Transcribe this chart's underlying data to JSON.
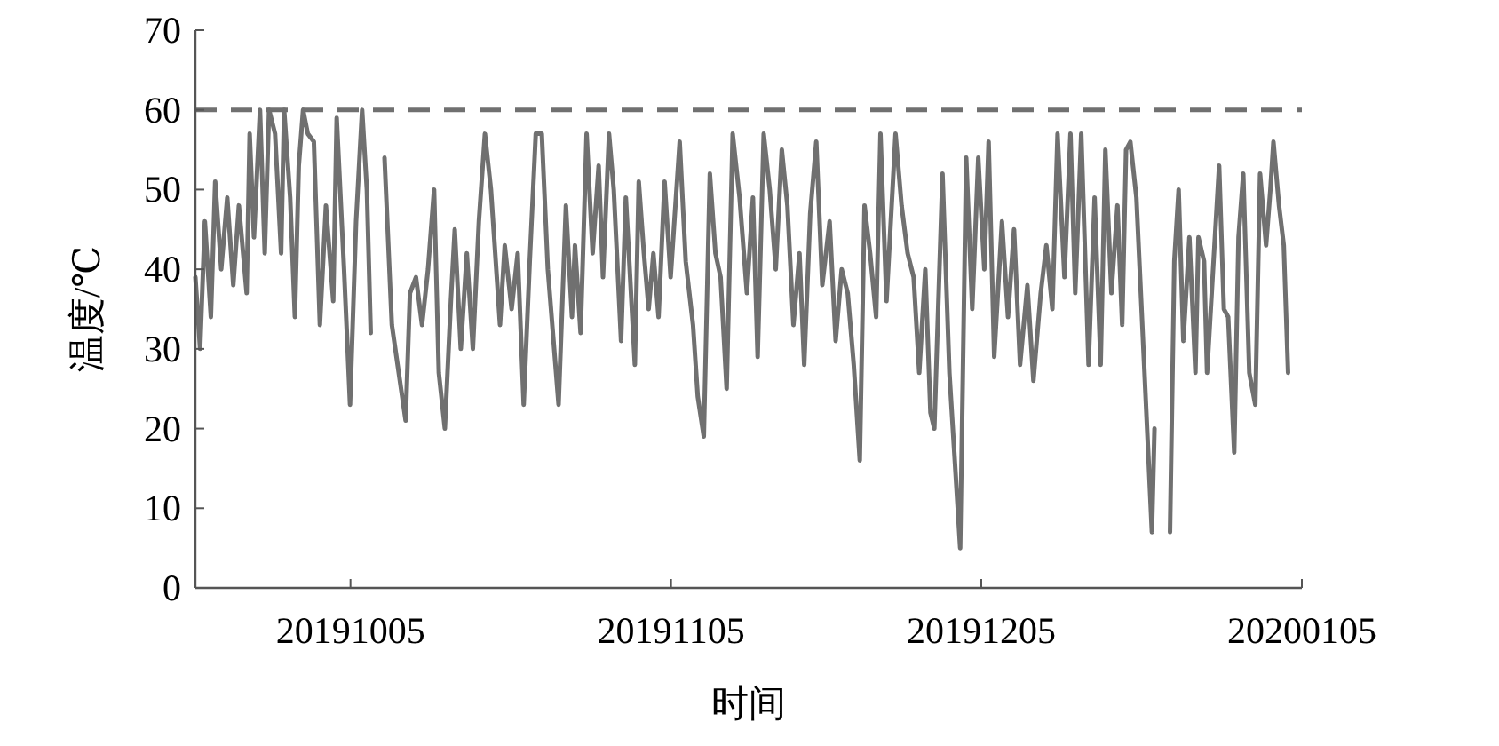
{
  "chart_data": {
    "type": "line",
    "xlabel": "时间",
    "ylabel": "温度/℃",
    "color": "#707070",
    "xlim": [
      "2019-09-20",
      "2020-01-05"
    ],
    "xticks": [
      {
        "value": "2019-10-05",
        "label": "20191005"
      },
      {
        "value": "2019-11-05",
        "label": "20191105"
      },
      {
        "value": "2019-12-05",
        "label": "20191205"
      },
      {
        "value": "2020-01-05",
        "label": "20200105"
      }
    ],
    "ylim": [
      0,
      70
    ],
    "yticks": [
      0,
      10,
      20,
      30,
      40,
      50,
      60,
      70
    ],
    "ref_lines": [
      {
        "axis": "y",
        "value": 60,
        "color": "#707070",
        "line_style": "dashed"
      }
    ],
    "x": [
      "2019-09-20T00:00",
      "2019-09-20T11:00",
      "2019-09-20T22:00",
      "2019-09-21T12:00",
      "2019-09-21T22:00",
      "2019-09-22T12:00",
      "2019-09-23T02:00",
      "2019-09-23T16:00",
      "2019-09-24T05:00",
      "2019-09-24T23:00",
      "2019-09-25T06:00",
      "2019-09-25T16:00",
      "2019-09-26T06:00",
      "2019-09-26T17:00",
      "2019-09-27T03:00",
      "2019-09-27T17:00",
      "2019-09-28T07:00",
      "2019-09-28T14:00",
      "2019-09-29T04:00",
      "2019-09-29T15:00",
      "2019-09-30T00:00",
      "2019-09-30T10:00",
      "2019-09-30T21:00",
      "2019-10-01T11:00",
      "2019-10-02T01:00",
      "2019-10-02T15:00",
      "2019-10-03T08:00",
      "2019-10-03T16:00",
      "2019-10-04T09:00",
      "2019-10-04T23:00",
      "2019-10-05T13:00",
      "2019-10-06T03:00",
      "2019-10-06T14:00",
      "2019-10-06T23:00",
      "2019-10-07T06:00",
      "2019-10-08T07:00",
      "2019-10-09T00:00",
      "2019-10-10T08:00",
      "2019-10-10T18:00",
      "2019-10-11T08:00",
      "2019-10-11T22:00",
      "2019-10-12T12:00",
      "2019-10-13T02:00",
      "2019-10-13T13:00",
      "2019-10-14T03:00",
      "2019-10-14T17:00",
      "2019-10-15T02:00",
      "2019-10-15T16:00",
      "2019-10-16T06:00",
      "2019-10-16T20:00",
      "2019-10-17T10:00",
      "2019-10-18T00:00",
      "2019-10-18T14:00",
      "2019-10-19T11:00",
      "2019-10-19T22:00",
      "2019-10-20T14:00",
      "2019-10-21T04:00",
      "2019-10-21T18:00",
      "2019-10-22T08:00",
      "2019-10-22T22:00",
      "2019-10-23T12:00",
      "2019-10-24T02:00",
      "2019-10-25T03:00",
      "2019-10-25T20:00",
      "2019-10-26T10:00",
      "2019-10-26T17:00",
      "2019-10-27T06:00",
      "2019-10-27T20:00",
      "2019-10-28T10:00",
      "2019-10-29T00:00",
      "2019-10-29T10:00",
      "2019-10-30T00:00",
      "2019-10-30T11:00",
      "2019-10-31T04:00",
      "2019-10-31T15:00",
      "2019-11-01T12:00",
      "2019-11-01T21:00",
      "2019-11-02T09:00",
      "2019-11-02T20:00",
      "2019-11-03T07:00",
      "2019-11-03T19:00",
      "2019-11-04T09:00",
      "2019-11-04T23:00",
      "2019-11-05T20:00",
      "2019-11-06T10:00",
      "2019-11-07T03:00",
      "2019-11-07T14:00",
      "2019-11-08T04:00",
      "2019-11-08T18:00",
      "2019-11-09T07:00",
      "2019-11-09T19:00",
      "2019-11-10T09:00",
      "2019-11-10T23:00",
      "2019-11-11T15:00",
      "2019-11-12T08:00",
      "2019-11-12T22:00",
      "2019-11-13T09:00",
      "2019-11-13T23:00",
      "2019-11-14T13:00",
      "2019-11-15T03:00",
      "2019-11-15T17:00",
      "2019-11-16T06:00",
      "2019-11-16T20:00",
      "2019-11-17T10:00",
      "2019-11-17T21:00",
      "2019-11-18T11:00",
      "2019-11-19T01:00",
      "2019-11-19T15:00",
      "2019-11-20T08:00",
      "2019-11-20T22:00",
      "2019-11-21T12:00",
      "2019-11-22T02:00",
      "2019-11-22T16:00",
      "2019-11-23T06:00",
      "2019-11-23T17:00",
      "2019-11-24T06:00",
      "2019-11-24T20:00",
      "2019-11-25T06:00",
      "2019-11-25T20:00",
      "2019-11-26T17:00",
      "2019-11-27T07:00",
      "2019-11-27T21:00",
      "2019-11-28T11:00",
      "2019-11-29T00:00",
      "2019-11-29T14:00",
      "2019-11-30T02:00",
      "2019-11-30T11:00",
      "2019-12-01T06:00",
      "2019-12-01T22:00",
      "2019-12-02T23:00",
      "2019-12-03T13:00",
      "2019-12-04T03:00",
      "2019-12-04T17:00",
      "2019-12-05T07:00",
      "2019-12-05T17:00",
      "2019-12-06T06:00",
      "2019-12-07T00:00",
      "2019-12-07T14:00",
      "2019-12-08T04:00",
      "2019-12-08T18:00",
      "2019-12-09T11:00",
      "2019-12-10T01:00",
      "2019-12-10T18:00",
      "2019-12-11T07:00",
      "2019-12-11T21:00",
      "2019-12-12T09:00",
      "2019-12-13T01:00",
      "2019-12-13T15:00",
      "2019-12-14T02:00",
      "2019-12-14T16:00",
      "2019-12-15T09:00",
      "2019-12-15T23:00",
      "2019-12-16T13:00",
      "2019-12-17T00:00",
      "2019-12-17T14:00",
      "2019-12-18T04:00",
      "2019-12-18T15:00",
      "2019-12-19T00:00",
      "2019-12-19T10:00",
      "2019-12-20T00:00",
      "2019-12-21T12:00",
      "2019-12-21T18:00",
      "2019-12-22T06:00",
      "2019-12-23T06:00",
      "2019-12-23T16:00",
      "2019-12-24T02:00",
      "2019-12-24T13:00",
      "2019-12-25T03:00",
      "2019-12-25T17:00",
      "2019-12-26T00:00",
      "2019-12-26T13:00",
      "2019-12-26T20:00",
      "2019-12-27T10:00",
      "2019-12-28T00:00",
      "2019-12-28T11:00",
      "2019-12-28T21:00",
      "2019-12-29T11:00",
      "2019-12-29T21:00",
      "2019-12-30T08:00",
      "2019-12-30T22:00",
      "2019-12-31T12:00",
      "2019-12-31T23:00",
      "2020-01-01T13:00",
      "2020-01-01T23:00",
      "2020-01-02T06:00",
      "2020-01-02T19:00",
      "2020-01-03T06:00",
      "2020-01-03T16:00"
    ],
    "values": [
      39,
      30,
      46,
      34,
      51,
      40,
      49,
      38,
      48,
      37,
      57,
      44,
      60,
      42,
      60,
      57,
      42,
      60,
      49,
      34,
      53,
      60,
      57,
      56,
      33,
      48,
      36,
      59,
      40,
      23,
      46,
      60,
      50,
      32,
      null,
      54,
      33,
      21,
      37,
      39,
      33,
      40,
      50,
      27,
      20,
      36,
      45,
      30,
      42,
      30,
      46,
      57,
      50,
      33,
      43,
      35,
      42,
      23,
      41,
      57,
      57,
      40,
      23,
      48,
      34,
      43,
      32,
      57,
      42,
      53,
      39,
      57,
      50,
      31,
      49,
      28,
      51,
      42,
      35,
      42,
      34,
      51,
      39,
      56,
      41,
      33,
      24,
      19,
      52,
      42,
      39,
      25,
      57,
      49,
      37,
      49,
      29,
      57,
      50,
      40,
      55,
      48,
      33,
      42,
      28,
      47,
      56,
      38,
      46,
      31,
      40,
      37,
      28,
      16,
      48,
      42,
      34,
      57,
      36,
      57,
      48,
      42,
      39,
      27,
      40,
      22,
      20,
      52,
      27,
      5,
      54,
      35,
      54,
      40,
      56,
      29,
      46,
      34,
      45,
      28,
      38,
      26,
      37,
      43,
      35,
      57,
      39,
      57,
      37,
      57,
      28,
      49,
      28,
      55,
      37,
      48,
      33,
      55,
      56,
      49,
      7,
      20,
      null,
      7,
      41,
      50,
      31,
      44,
      27,
      44,
      41,
      27,
      40,
      53,
      35,
      34,
      17,
      44,
      52,
      27,
      23,
      52,
      43,
      50,
      56,
      48,
      43,
      27
    ]
  }
}
